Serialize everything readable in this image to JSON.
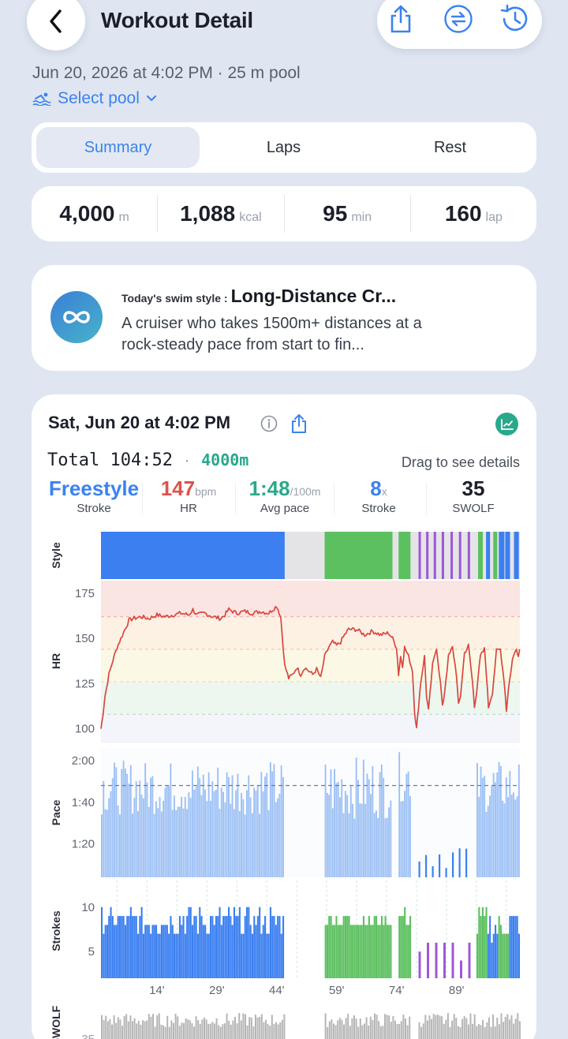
{
  "header": {
    "title": "Workout Detail"
  },
  "meta": {
    "subtitle": "Jun 20, 2026 at 4:02 PM · 25 m pool",
    "select_pool": "Select pool"
  },
  "tabs": [
    {
      "label": "Summary",
      "active": true
    },
    {
      "label": "Laps",
      "active": false
    },
    {
      "label": "Rest",
      "active": false
    }
  ],
  "stats": [
    {
      "value": "4,000",
      "unit": "m"
    },
    {
      "value": "1,088",
      "unit": "kcal"
    },
    {
      "value": "95",
      "unit": "min"
    },
    {
      "value": "160",
      "unit": "lap"
    }
  ],
  "swim_style": {
    "label": "Today's swim style :",
    "name": "Long-Distance Cr...",
    "description": "A cruiser who takes 1500m+ distances at a rock-steady pace from start to fin..."
  },
  "detail": {
    "date": "Sat, Jun 20 at 4:02 PM",
    "total_label": "Total",
    "total_time": "104:52",
    "separator": "·",
    "total_distance": "4000m",
    "drag_hint": "Drag to see details",
    "metrics": [
      {
        "value": "Freestyle",
        "unit": "",
        "label": "Stroke",
        "color": "#3b82f0"
      },
      {
        "value": "147",
        "unit": "bpm",
        "label": "HR",
        "color": "#e0504a"
      },
      {
        "value": "1:48",
        "unit": "/100m",
        "label": "Avg pace",
        "color": "#2aa88c"
      },
      {
        "value": "8",
        "unit": "x",
        "label": "Stroke",
        "color": "#3b82f0"
      },
      {
        "value": "35",
        "unit": "",
        "label": "SWOLF",
        "color": "#1b1f2a"
      }
    ]
  },
  "colors": {
    "freestyle": "#3b7ff0",
    "breaststroke": "#5cc05f",
    "butterfly": "#a057d6",
    "rest": "#e4e4e6",
    "hr_line": "#d9473f",
    "pace_bar": "#9cc0f5",
    "swolf_bar": "#b5b5b5"
  },
  "chart_data": {
    "type": "bar",
    "x_unit": "min",
    "x_range": [
      0,
      104.87
    ],
    "x_ticks": [
      "14'",
      "29'",
      "44'",
      "59'",
      "74'",
      "89'"
    ],
    "x_tick_values": [
      14,
      29,
      44,
      59,
      74,
      89
    ],
    "style_segments": [
      {
        "start": 0,
        "end": 46,
        "style": "freestyle"
      },
      {
        "start": 46,
        "end": 56,
        "style": "rest"
      },
      {
        "start": 56,
        "end": 73,
        "style": "breaststroke"
      },
      {
        "start": 73,
        "end": 74.5,
        "style": "rest"
      },
      {
        "start": 74.5,
        "end": 77.5,
        "style": "breaststroke"
      },
      {
        "start": 77.5,
        "end": 79.5,
        "style": "rest"
      },
      {
        "start": 79.5,
        "end": 80.1,
        "style": "butterfly"
      },
      {
        "start": 81.4,
        "end": 82.0,
        "style": "butterfly"
      },
      {
        "start": 83.3,
        "end": 83.9,
        "style": "butterfly"
      },
      {
        "start": 85.3,
        "end": 85.9,
        "style": "butterfly"
      },
      {
        "start": 87.5,
        "end": 88.1,
        "style": "butterfly"
      },
      {
        "start": 89.6,
        "end": 90.2,
        "style": "butterfly"
      },
      {
        "start": 91.8,
        "end": 92.4,
        "style": "butterfly"
      },
      {
        "start": 94.4,
        "end": 95.6,
        "style": "breaststroke"
      },
      {
        "start": 96.4,
        "end": 97.4,
        "style": "freestyle"
      },
      {
        "start": 98.2,
        "end": 99.2,
        "style": "breaststroke"
      },
      {
        "start": 99.6,
        "end": 101.0,
        "style": "freestyle"
      },
      {
        "start": 101.2,
        "end": 102.4,
        "style": "freestyle"
      },
      {
        "start": 103.4,
        "end": 104.6,
        "style": "freestyle"
      }
    ],
    "hr": {
      "label": "HR",
      "ylim": [
        92,
        182
      ],
      "ticks": [
        100,
        125,
        150,
        175
      ],
      "points": [
        [
          0,
          100
        ],
        [
          0.5,
          108
        ],
        [
          1,
          118
        ],
        [
          2,
          130
        ],
        [
          3,
          138
        ],
        [
          4,
          145
        ],
        [
          5,
          150
        ],
        [
          6,
          155
        ],
        [
          7,
          160
        ],
        [
          8,
          161
        ],
        [
          10,
          162
        ],
        [
          12,
          161
        ],
        [
          14,
          163
        ],
        [
          16,
          162
        ],
        [
          18,
          163
        ],
        [
          20,
          164
        ],
        [
          22,
          163
        ],
        [
          23,
          166
        ],
        [
          24,
          163
        ],
        [
          26,
          164
        ],
        [
          28,
          162
        ],
        [
          30,
          161
        ],
        [
          31,
          163
        ],
        [
          32,
          166
        ],
        [
          34,
          164
        ],
        [
          36,
          165
        ],
        [
          38,
          164
        ],
        [
          40,
          165
        ],
        [
          42,
          164
        ],
        [
          43,
          166
        ],
        [
          44,
          168
        ],
        [
          45,
          162
        ],
        [
          46,
          135
        ],
        [
          47,
          128
        ],
        [
          48,
          130
        ],
        [
          49,
          134
        ],
        [
          50,
          130
        ],
        [
          51,
          134
        ],
        [
          52,
          132
        ],
        [
          53,
          130
        ],
        [
          54,
          133
        ],
        [
          55,
          128
        ],
        [
          56,
          140
        ],
        [
          57,
          145
        ],
        [
          58,
          148
        ],
        [
          59,
          146
        ],
        [
          60,
          148
        ],
        [
          61,
          152
        ],
        [
          62,
          155
        ],
        [
          64,
          155
        ],
        [
          66,
          152
        ],
        [
          68,
          154
        ],
        [
          70,
          152
        ],
        [
          72,
          153
        ],
        [
          73,
          150
        ],
        [
          74,
          145
        ],
        [
          74.5,
          130
        ],
        [
          75,
          140
        ],
        [
          75.5,
          135
        ],
        [
          76,
          145
        ],
        [
          77,
          140
        ],
        [
          78,
          132
        ],
        [
          78.5,
          110
        ],
        [
          79,
          100
        ],
        [
          79.5,
          112
        ],
        [
          80,
          125
        ],
        [
          81,
          140
        ],
        [
          81.5,
          118
        ],
        [
          82,
          110
        ],
        [
          83,
          135
        ],
        [
          84,
          145
        ],
        [
          85,
          125
        ],
        [
          85.5,
          112
        ],
        [
          86,
          120
        ],
        [
          87,
          140
        ],
        [
          88,
          145
        ],
        [
          89,
          130
        ],
        [
          89.5,
          113
        ],
        [
          90,
          118
        ],
        [
          91,
          142
        ],
        [
          92,
          146
        ],
        [
          93,
          126
        ],
        [
          93.5,
          112
        ],
        [
          94,
          120
        ],
        [
          95,
          140
        ],
        [
          96,
          144
        ],
        [
          96.5,
          130
        ],
        [
          97,
          112
        ],
        [
          98,
          120
        ],
        [
          99,
          143
        ],
        [
          100,
          144
        ],
        [
          101,
          125
        ],
        [
          101.5,
          110
        ],
        [
          102,
          122
        ],
        [
          103,
          138
        ],
        [
          104,
          145
        ],
        [
          104.5,
          140
        ],
        [
          104.8,
          144
        ]
      ],
      "zones": [
        {
          "min": 162,
          "max": 182,
          "color": "#fbe5e3"
        },
        {
          "min": 144,
          "max": 162,
          "color": "#fdf1e4"
        },
        {
          "min": 126,
          "max": 144,
          "color": "#fbf8e6"
        },
        {
          "min": 108,
          "max": 126,
          "color": "#edf7ef"
        },
        {
          "min": 92,
          "max": 108,
          "color": "#f3f5fb"
        }
      ]
    },
    "pace": {
      "label": "Pace",
      "ticks": [
        "2:00",
        "1:40",
        "1:20"
      ],
      "tick_values": [
        120,
        100,
        80
      ],
      "ylim": [
        64,
        126
      ],
      "avg": 108,
      "swim_intervals": [
        {
          "start": 0,
          "end": 46,
          "min": 94,
          "max": 120
        },
        {
          "start": 56,
          "end": 73,
          "min": 92,
          "max": 122
        },
        {
          "start": 74.5,
          "end": 77.5,
          "min": 100,
          "max": 124
        },
        {
          "start": 79.5,
          "end": 92.5,
          "min": 68,
          "max": 82
        },
        {
          "start": 94,
          "end": 104.87,
          "min": 95,
          "max": 120
        }
      ]
    },
    "strokes": {
      "label": "Strokes",
      "ticks": [
        10,
        5
      ],
      "ylim": [
        2,
        13
      ],
      "swim_intervals": [
        {
          "start": 0,
          "end": 46,
          "min": 7,
          "max": 10,
          "style": "freestyle"
        },
        {
          "start": 56,
          "end": 73,
          "min": 8,
          "max": 9,
          "style": "breaststroke"
        },
        {
          "start": 74.5,
          "end": 77.5,
          "min": 8,
          "max": 10,
          "style": "breaststroke"
        },
        {
          "start": 79.5,
          "end": 92.5,
          "min": 4,
          "max": 7,
          "style": "butterfly"
        },
        {
          "start": 94,
          "end": 104.87,
          "min": 6,
          "max": 10,
          "style": "mixed"
        }
      ]
    },
    "swolf": {
      "label": "SWOLF",
      "swim_intervals": [
        {
          "start": 0,
          "end": 46
        },
        {
          "start": 56,
          "end": 77.5
        },
        {
          "start": 79.5,
          "end": 104.87
        }
      ]
    }
  }
}
